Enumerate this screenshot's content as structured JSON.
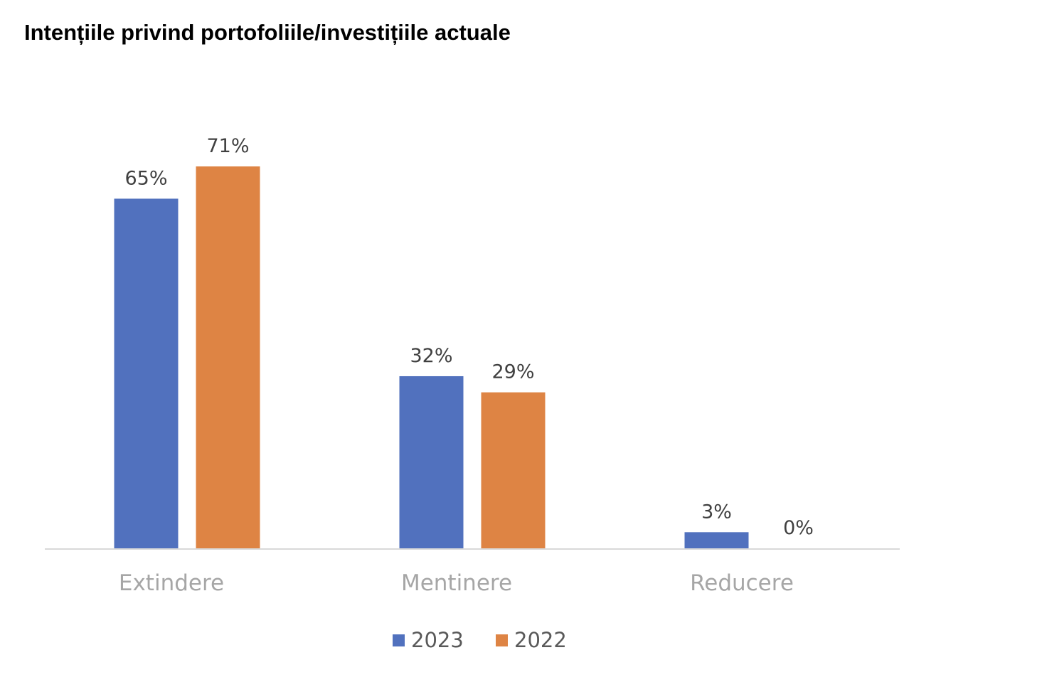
{
  "chart_data": {
    "type": "bar",
    "title": "Intențiile privind portofoliile/investițiile actuale",
    "categories": [
      "Extindere",
      "Mentinere",
      "Reducere"
    ],
    "series": [
      {
        "name": "2023",
        "color": "#5171be",
        "values": [
          65,
          32,
          3
        ],
        "labels": [
          "65%",
          "32%",
          "3%"
        ]
      },
      {
        "name": "2022",
        "color": "#de8444",
        "values": [
          71,
          29,
          0
        ],
        "labels": [
          "71%",
          "29%",
          "0%"
        ]
      }
    ],
    "xlabel": "",
    "ylabel": "",
    "ylim": [
      0,
      71
    ],
    "grid": false,
    "legend": "bottom-center"
  }
}
